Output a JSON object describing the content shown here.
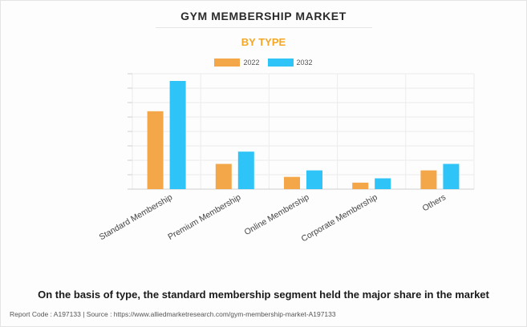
{
  "header": {
    "title": "GYM MEMBERSHIP MARKET",
    "subtitle": "BY TYPE"
  },
  "colors": {
    "subtitle": "#f5a623",
    "series_2022": "#f4a748",
    "series_2032": "#2ec4f7"
  },
  "chart_data": {
    "type": "bar",
    "categories": [
      "Standard Membership",
      "Premium Membership",
      "Online Membership",
      "Corporate Membership",
      "Others"
    ],
    "series": [
      {
        "name": "2022",
        "values": [
          54,
          17.5,
          8.5,
          4.5,
          13
        ]
      },
      {
        "name": "2032",
        "values": [
          75,
          26,
          13,
          7.5,
          17.5
        ]
      }
    ],
    "ylim": [
      0,
      80
    ],
    "grid": true,
    "legend_position": "top-center"
  },
  "caption": "On the basis of type, the standard membership segment held the major share in the market",
  "footer": "Report Code : A197133  |  Source : https://www.alliedmarketresearch.com/gym-membership-market-A197133"
}
